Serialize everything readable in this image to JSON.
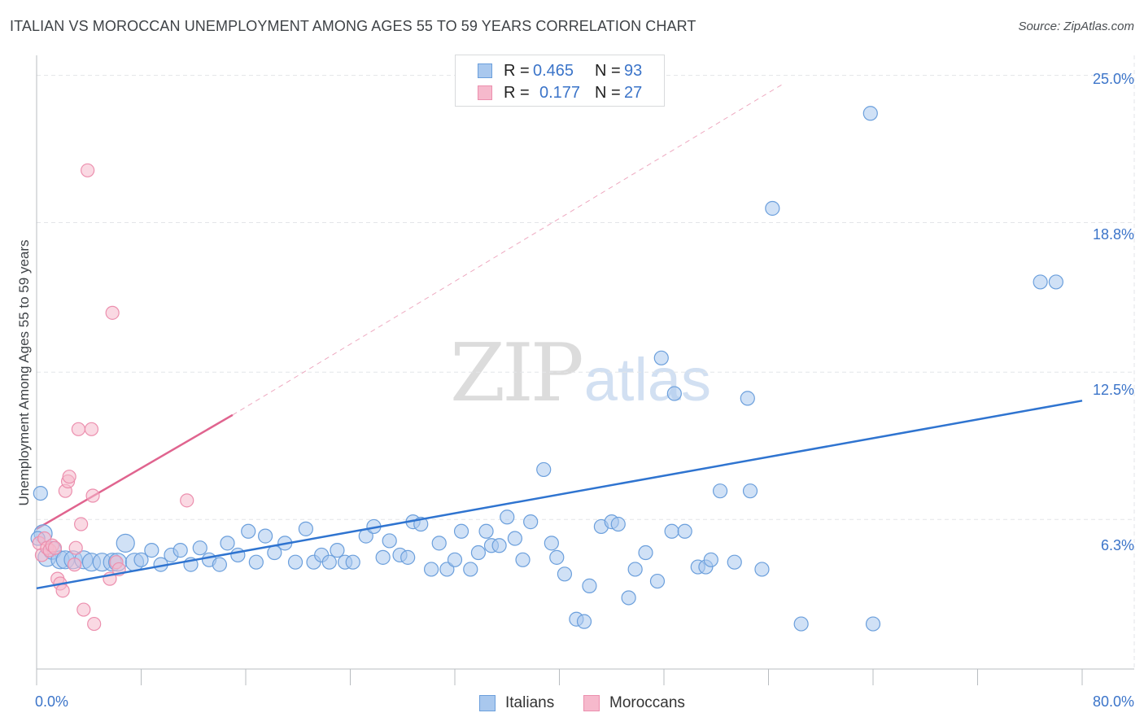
{
  "header": {
    "title": "ITALIAN VS MOROCCAN UNEMPLOYMENT AMONG AGES 55 TO 59 YEARS CORRELATION CHART",
    "source": "Source: ZipAtlas.com"
  },
  "watermark": {
    "zip": "ZIP",
    "atlas": "atlas"
  },
  "legend": {
    "rows": [
      {
        "r_label": "R =",
        "r_value": "0.465",
        "n_label": "N =",
        "n_value": "93"
      },
      {
        "r_label": "R =",
        "r_value": "0.177",
        "n_label": "N =",
        "n_value": "27"
      }
    ]
  },
  "bottom_legend": {
    "italians": "Italians",
    "moroccans": "Moroccans"
  },
  "colors": {
    "blue_fill": "#a9c8ee",
    "blue_stroke": "#6b9fdc",
    "blue_line": "#2f74d0",
    "pink_fill": "#f6b9cc",
    "pink_stroke": "#ec8fae",
    "pink_line": "#e0648f",
    "grid": "#e3e5e8",
    "tick_text": "#3b74c9"
  },
  "chart_data": {
    "type": "scatter",
    "title": "ITALIAN VS MOROCCAN UNEMPLOYMENT AMONG AGES 55 TO 59 YEARS CORRELATION CHART",
    "xlabel": "",
    "ylabel": "Unemployment Among Ages 55 to 59 years",
    "xlim": [
      0,
      80
    ],
    "ylim": [
      0,
      25.5
    ],
    "x_tick_labels": [
      "0.0%",
      "80.0%"
    ],
    "y_tick_labels": [
      "6.3%",
      "12.5%",
      "18.8%",
      "25.0%"
    ],
    "y_ticks": [
      6.3,
      12.5,
      18.8,
      25.0
    ],
    "x_minor_ticks": [
      0,
      8,
      16,
      24,
      32,
      40,
      48,
      56,
      64,
      72,
      80
    ],
    "series": [
      {
        "name": "Italians",
        "R": 0.465,
        "N": 93,
        "trend": {
          "x": [
            0,
            80
          ],
          "y": [
            3.4,
            11.3
          ],
          "style": "solid"
        },
        "points": [
          [
            0.3,
            7.4
          ],
          [
            0.5,
            5.7
          ],
          [
            0.8,
            4.7
          ],
          [
            1.2,
            5.0
          ],
          [
            1.8,
            4.6
          ],
          [
            2.2,
            4.6
          ],
          [
            2.8,
            4.6
          ],
          [
            3.6,
            4.6
          ],
          [
            4.2,
            4.5
          ],
          [
            5.0,
            4.5
          ],
          [
            5.8,
            4.5
          ],
          [
            6.2,
            4.5
          ],
          [
            6.8,
            5.3
          ],
          [
            7.5,
            4.5
          ],
          [
            8.0,
            4.6
          ],
          [
            8.8,
            5.0
          ],
          [
            9.5,
            4.4
          ],
          [
            10.3,
            4.8
          ],
          [
            11.0,
            5.0
          ],
          [
            11.8,
            4.4
          ],
          [
            12.5,
            5.1
          ],
          [
            13.2,
            4.6
          ],
          [
            14.0,
            4.4
          ],
          [
            14.6,
            5.3
          ],
          [
            15.4,
            4.8
          ],
          [
            16.2,
            5.8
          ],
          [
            16.8,
            4.5
          ],
          [
            17.5,
            5.6
          ],
          [
            18.2,
            4.9
          ],
          [
            19.0,
            5.3
          ],
          [
            19.8,
            4.5
          ],
          [
            20.6,
            5.9
          ],
          [
            21.2,
            4.5
          ],
          [
            21.8,
            4.8
          ],
          [
            22.4,
            4.5
          ],
          [
            23.0,
            5.0
          ],
          [
            23.6,
            4.5
          ],
          [
            24.2,
            4.5
          ],
          [
            25.2,
            5.6
          ],
          [
            25.8,
            6.0
          ],
          [
            26.5,
            4.7
          ],
          [
            27.0,
            5.4
          ],
          [
            27.8,
            4.8
          ],
          [
            28.4,
            4.7
          ],
          [
            28.8,
            6.2
          ],
          [
            29.4,
            6.1
          ],
          [
            30.2,
            4.2
          ],
          [
            30.8,
            5.3
          ],
          [
            31.4,
            4.2
          ],
          [
            32.0,
            4.6
          ],
          [
            32.5,
            5.8
          ],
          [
            33.2,
            4.2
          ],
          [
            33.8,
            4.9
          ],
          [
            34.4,
            5.8
          ],
          [
            34.8,
            5.2
          ],
          [
            35.4,
            5.2
          ],
          [
            36.0,
            6.4
          ],
          [
            36.6,
            5.5
          ],
          [
            37.2,
            4.6
          ],
          [
            37.8,
            6.2
          ],
          [
            38.8,
            8.4
          ],
          [
            39.4,
            5.3
          ],
          [
            39.8,
            4.7
          ],
          [
            40.4,
            4.0
          ],
          [
            41.3,
            2.1
          ],
          [
            41.9,
            2.0
          ],
          [
            42.3,
            3.5
          ],
          [
            43.2,
            6.0
          ],
          [
            44.0,
            6.2
          ],
          [
            44.5,
            6.1
          ],
          [
            45.3,
            3.0
          ],
          [
            45.8,
            4.2
          ],
          [
            46.6,
            4.9
          ],
          [
            47.5,
            3.7
          ],
          [
            47.8,
            13.1
          ],
          [
            48.6,
            5.8
          ],
          [
            48.8,
            11.6
          ],
          [
            49.6,
            5.8
          ],
          [
            50.6,
            4.3
          ],
          [
            51.2,
            4.3
          ],
          [
            51.6,
            4.6
          ],
          [
            52.3,
            7.5
          ],
          [
            53.4,
            4.5
          ],
          [
            54.4,
            11.4
          ],
          [
            54.6,
            7.5
          ],
          [
            55.5,
            4.2
          ],
          [
            56.3,
            19.4
          ],
          [
            58.5,
            1.9
          ],
          [
            63.8,
            23.4
          ],
          [
            64.0,
            1.9
          ],
          [
            76.8,
            16.3
          ],
          [
            78.0,
            16.3
          ],
          [
            0.1,
            5.5
          ]
        ]
      },
      {
        "name": "Moroccans",
        "R": 0.177,
        "N": 27,
        "trend": {
          "x": [
            0,
            15
          ],
          "y": [
            5.9,
            10.7
          ],
          "dashed_extension_to": [
            57,
            24.6
          ]
        },
        "points": [
          [
            0.2,
            5.3
          ],
          [
            0.4,
            4.8
          ],
          [
            0.6,
            5.5
          ],
          [
            0.8,
            5.1
          ],
          [
            1.0,
            5.0
          ],
          [
            1.2,
            5.2
          ],
          [
            1.4,
            5.1
          ],
          [
            1.6,
            3.8
          ],
          [
            1.8,
            3.6
          ],
          [
            2.0,
            3.3
          ],
          [
            2.2,
            7.5
          ],
          [
            2.4,
            7.9
          ],
          [
            2.5,
            8.1
          ],
          [
            2.9,
            4.4
          ],
          [
            3.0,
            5.1
          ],
          [
            3.2,
            10.1
          ],
          [
            3.4,
            6.1
          ],
          [
            3.6,
            2.5
          ],
          [
            3.9,
            21.0
          ],
          [
            4.2,
            10.1
          ],
          [
            4.3,
            7.3
          ],
          [
            4.4,
            1.9
          ],
          [
            5.6,
            3.8
          ],
          [
            5.8,
            15.0
          ],
          [
            6.1,
            4.5
          ],
          [
            6.3,
            4.2
          ],
          [
            11.5,
            7.1
          ]
        ]
      }
    ]
  }
}
